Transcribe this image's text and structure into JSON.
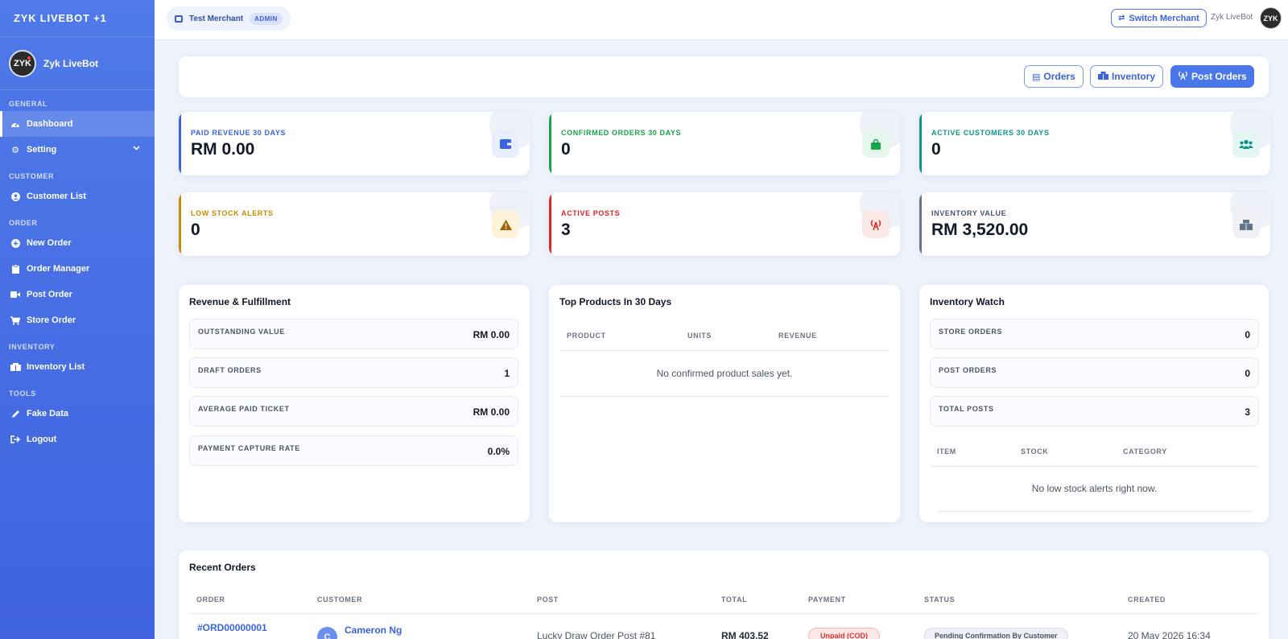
{
  "app": {
    "brand": "ZYK LIVEBOT +1",
    "user_name": "Zyk LiveBot",
    "avatar_text": "ZYK"
  },
  "sidebar": {
    "sections": [
      {
        "title": "GENERAL"
      },
      {
        "title": "CUSTOMER"
      },
      {
        "title": "ORDER"
      },
      {
        "title": "INVENTORY"
      },
      {
        "title": "TOOLS"
      }
    ],
    "items": [
      {
        "label": "Dashboard",
        "icon": "gauge-icon",
        "active": true
      },
      {
        "label": "Setting",
        "icon": "gear-icon"
      },
      {
        "label": "Customer List",
        "icon": "user-circle-icon"
      },
      {
        "label": "New Order",
        "icon": "plus-circle-icon"
      },
      {
        "label": "Order Manager",
        "icon": "clipboard-icon"
      },
      {
        "label": "Post Order",
        "icon": "video-icon"
      },
      {
        "label": "Store Order",
        "icon": "cart-icon"
      },
      {
        "label": "Inventory List",
        "icon": "boxes-icon"
      },
      {
        "label": "Fake Data",
        "icon": "pen-icon"
      },
      {
        "label": "Logout",
        "icon": "logout-icon"
      }
    ]
  },
  "topbar": {
    "merchant": "Test Merchant",
    "role": "ADMIN",
    "switch_label": "Switch Merchant",
    "user_name": "Zyk LiveBot",
    "avatar_text": "ZYK"
  },
  "actions": {
    "orders": "Orders",
    "inventory": "Inventory",
    "post_orders": "Post Orders"
  },
  "stats": [
    {
      "label": "PAID REVENUE 30 DAYS",
      "value": "RM 0.00",
      "color": "#3b63e0",
      "icon": "wallet-icon"
    },
    {
      "label": "CONFIRMED ORDERS 30 DAYS",
      "value": "0",
      "color": "#16a34a",
      "icon": "bag-icon"
    },
    {
      "label": "ACTIVE CUSTOMERS 30 DAYS",
      "value": "0",
      "color": "#0d9488",
      "icon": "users-icon"
    },
    {
      "label": "LOW STOCK ALERTS",
      "value": "0",
      "color": "#ca8a04",
      "icon": "warning-icon"
    },
    {
      "label": "ACTIVE POSTS",
      "value": "3",
      "color": "#dc2626",
      "icon": "broadcast-icon"
    },
    {
      "label": "INVENTORY VALUE",
      "value": "RM 3,520.00",
      "color": "#64748b",
      "icon": "boxes-icon"
    }
  ],
  "revenue": {
    "title": "Revenue & Fulfillment",
    "rows": [
      {
        "label": "OUTSTANDING VALUE",
        "value": "RM 0.00"
      },
      {
        "label": "DRAFT ORDERS",
        "value": "1"
      },
      {
        "label": "AVERAGE PAID TICKET",
        "value": "RM 0.00"
      },
      {
        "label": "PAYMENT CAPTURE RATE",
        "value": "0.0%"
      }
    ]
  },
  "top_products": {
    "title": "Top Products In 30 Days",
    "columns": [
      "PRODUCT",
      "UNITS",
      "REVENUE"
    ],
    "empty": "No confirmed product sales yet."
  },
  "inventory_watch": {
    "title": "Inventory Watch",
    "rows": [
      {
        "label": "STORE ORDERS",
        "value": "0"
      },
      {
        "label": "POST ORDERS",
        "value": "0"
      },
      {
        "label": "TOTAL POSTS",
        "value": "3"
      }
    ],
    "columns": [
      "ITEM",
      "STOCK",
      "CATEGORY"
    ],
    "empty": "No low stock alerts right now."
  },
  "recent_orders": {
    "title": "Recent Orders",
    "columns": [
      "ORDER",
      "CUSTOMER",
      "POST",
      "TOTAL",
      "PAYMENT",
      "STATUS",
      "CREATED"
    ],
    "rows": [
      {
        "order": "#ORD00000001",
        "customer_initial": "C",
        "customer": "Cameron Ng",
        "post": "Lucky Draw Order Post #81",
        "total": "RM 403.52",
        "payment": "Unpaid (COD)",
        "status": "Pending Confirmation By Customer",
        "created": "20 May 2026 16:34"
      }
    ]
  }
}
